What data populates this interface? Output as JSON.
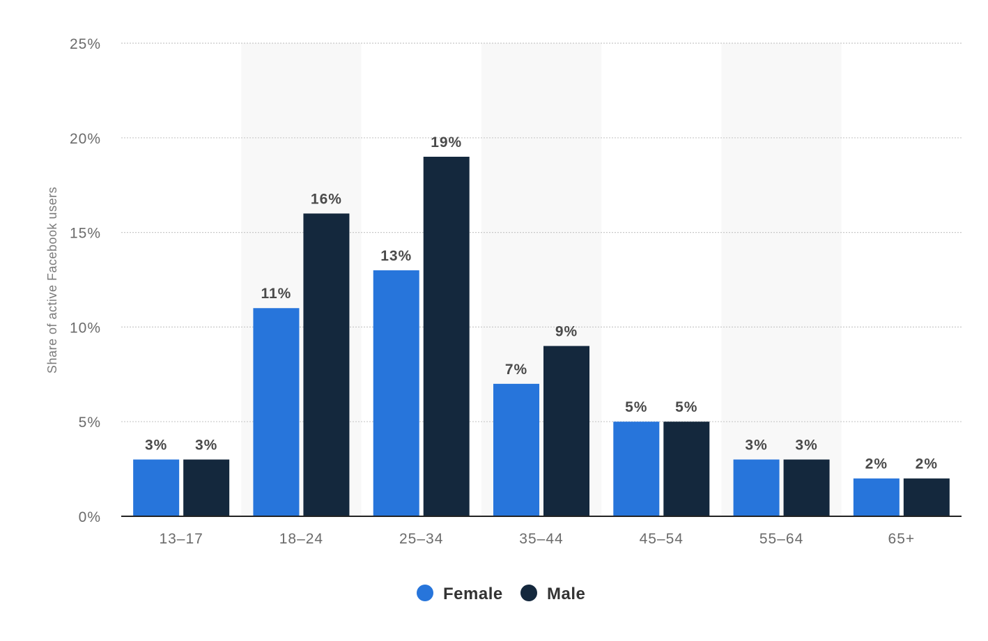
{
  "chart_data": {
    "type": "bar",
    "categories": [
      "13-17",
      "18-24",
      "25-34",
      "35-44",
      "45-54",
      "55-64",
      "65+"
    ],
    "series": [
      {
        "name": "Female",
        "color": "#2775db",
        "values": [
          3,
          11,
          13,
          7,
          5,
          3,
          2
        ]
      },
      {
        "name": "Male",
        "color": "#14283d",
        "values": [
          3,
          16,
          19,
          9,
          5,
          3,
          2
        ]
      }
    ],
    "value_labels": [
      [
        "3%",
        "11%",
        "13%",
        "7%",
        "5%",
        "3%",
        "2%"
      ],
      [
        "3%",
        "16%",
        "19%",
        "9%",
        "5%",
        "3%",
        "2%"
      ]
    ],
    "ylabel": "Share of active Facebook users",
    "ylim": [
      0,
      25
    ],
    "yticks": [
      0,
      5,
      10,
      15,
      20,
      25
    ],
    "ytick_labels": [
      "0%",
      "5%",
      "10%",
      "15%",
      "20%",
      "25%"
    ],
    "xtick_labels": [
      "13–17",
      "18–24",
      "25–34",
      "35–44",
      "45–54",
      "55–64",
      "65+"
    ],
    "grid": true,
    "legend": "bottom-center"
  }
}
